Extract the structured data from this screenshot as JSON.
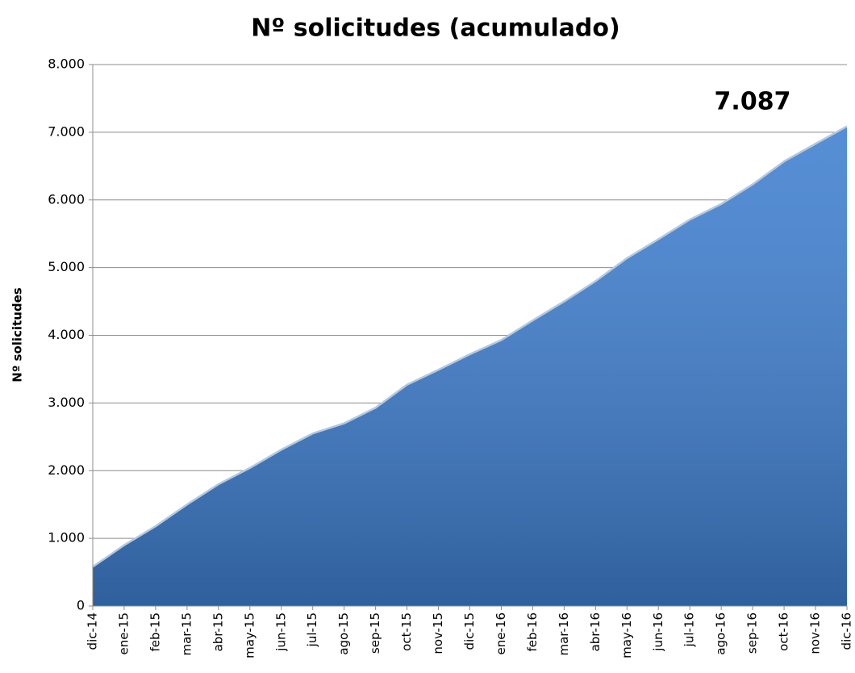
{
  "chart_data": {
    "type": "area",
    "title": "Nº solicitudes (acumulado)",
    "ylabel": "Nº solicitudes",
    "annotation": "7.087",
    "categories": [
      "dic-14",
      "ene-15",
      "feb-15",
      "mar-15",
      "abr-15",
      "may-15",
      "jun-15",
      "jul-15",
      "ago-15",
      "sep-15",
      "oct-15",
      "nov-15",
      "dic-15",
      "ene-16",
      "feb-16",
      "mar-16",
      "abr-16",
      "may-16",
      "jun-16",
      "jul-16",
      "ago-16",
      "sep-16",
      "oct-16",
      "nov-16",
      "dic-16"
    ],
    "values": [
      580,
      900,
      1180,
      1500,
      1800,
      2040,
      2310,
      2550,
      2700,
      2930,
      3270,
      3490,
      3720,
      3930,
      4220,
      4500,
      4800,
      5140,
      5420,
      5710,
      5940,
      6230,
      6570,
      6830,
      7087
    ],
    "color": "#3f7fd0",
    "ylim": [
      0,
      8000
    ],
    "yticks": [
      0,
      {
        "value": 1000,
        "label": "1.000"
      },
      {
        "value": 2000,
        "label": "2.000"
      },
      {
        "value": 3000,
        "label": "3.000"
      },
      {
        "value": 4000,
        "label": "4.000"
      },
      {
        "value": 5000,
        "label": "5.000"
      },
      {
        "value": 6000,
        "label": "6.000"
      },
      {
        "value": 7000,
        "label": "7.000"
      },
      {
        "value": 8000,
        "label": "8.000"
      }
    ],
    "grid": true
  }
}
